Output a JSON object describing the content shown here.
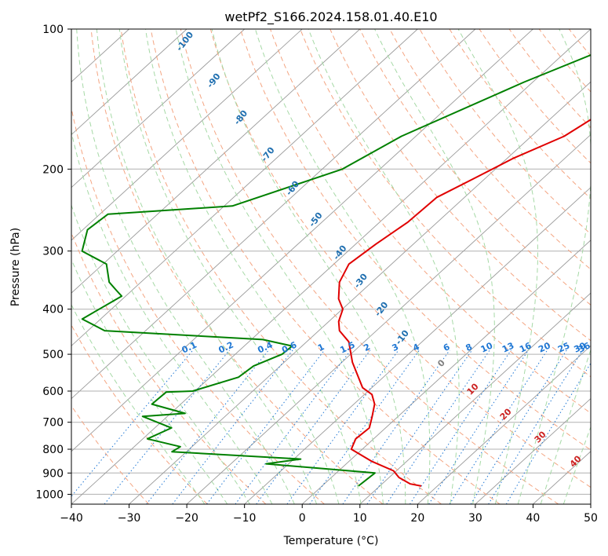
{
  "chart_data": {
    "type": "line",
    "title": "wetPf2_S166.2024.158.01.40.E10",
    "xlabel": "Temperature (°C)",
    "ylabel": "Pressure (hPa)",
    "xlim": [
      -40,
      50
    ],
    "ylim": [
      1050,
      100
    ],
    "y_scale": "log",
    "grid": true,
    "x_ticks": [
      -40,
      -30,
      -20,
      -10,
      0,
      10,
      20,
      30,
      40,
      50
    ],
    "y_ticks": [
      100,
      200,
      300,
      400,
      500,
      600,
      700,
      800,
      900,
      1000
    ],
    "series": [
      {
        "color": "#e00000",
        "points": [
          [
            -4.6,
            100
          ],
          [
            -12.4,
            110
          ],
          [
            -20.3,
            120
          ],
          [
            -19.7,
            130
          ],
          [
            -22.1,
            150
          ],
          [
            -24.3,
            170
          ],
          [
            -29,
            190
          ],
          [
            -32,
            210
          ],
          [
            -34.8,
            230
          ],
          [
            -35.1,
            260
          ],
          [
            -36.5,
            290
          ],
          [
            -37.4,
            320
          ],
          [
            -35.6,
            350
          ],
          [
            -32.6,
            380
          ],
          [
            -29.9,
            400
          ],
          [
            -28.3,
            425
          ],
          [
            -26.4,
            445
          ],
          [
            -22.7,
            470
          ],
          [
            -18.2,
            520
          ],
          [
            -11.6,
            590
          ],
          [
            -8.7,
            610
          ],
          [
            -6.4,
            640
          ],
          [
            -4.5,
            680
          ],
          [
            -2.8,
            720
          ],
          [
            -3.1,
            760
          ],
          [
            -1.9,
            800
          ],
          [
            4,
            850
          ],
          [
            9.5,
            890
          ],
          [
            11.7,
            920
          ],
          [
            14.9,
            950
          ],
          [
            17.2,
            960
          ]
        ]
      },
      {
        "color": "#008000",
        "points": [
          [
            -28.9,
            100
          ],
          [
            -41.5,
            130
          ],
          [
            -52.5,
            170
          ],
          [
            -56.5,
            200
          ],
          [
            -68.6,
            240
          ],
          [
            -88.6,
            250
          ],
          [
            -89.2,
            270
          ],
          [
            -86.1,
            300
          ],
          [
            -79.4,
            320
          ],
          [
            -75.5,
            350
          ],
          [
            -72.6,
            365
          ],
          [
            -70.7,
            375
          ],
          [
            -73.2,
            420
          ],
          [
            -67.1,
            445
          ],
          [
            -38,
            465
          ],
          [
            -31.7,
            480
          ],
          [
            -31.9,
            500
          ],
          [
            -34.6,
            530
          ],
          [
            -35.1,
            560
          ],
          [
            -40.4,
            600
          ],
          [
            -44.8,
            603
          ],
          [
            -45,
            640
          ],
          [
            -37.5,
            670
          ],
          [
            -44.3,
            680
          ],
          [
            -37.1,
            720
          ],
          [
            -39.2,
            760
          ],
          [
            -32,
            790
          ],
          [
            -32.5,
            810
          ],
          [
            -8.8,
            840
          ],
          [
            -13.9,
            860
          ],
          [
            6.7,
            900
          ],
          [
            6.3,
            960
          ]
        ]
      }
    ],
    "isotherm_labels": [],
    "dry_adiabat_labels": [
      "-100",
      "-90",
      "-80",
      "-70",
      "-60",
      "-50",
      "-40",
      "-30",
      "-20",
      "-10"
    ],
    "mixing_ratio_labels": [
      "0.1",
      "0.2",
      "0.4",
      "0.6",
      "1",
      "1.5",
      "2",
      "3",
      "4",
      "6",
      "8",
      "10",
      "13",
      "16",
      "20",
      "25",
      "30",
      "36"
    ],
    "moist_adiabat_labels": [
      "0",
      "10",
      "20",
      "30",
      "40"
    ],
    "colors": {
      "temperature": "#e00000",
      "dewpoint": "#008000",
      "dry_adiabat": "#f4a582",
      "moist_adiabat": "#a6d9a6",
      "mixing_ratio": "#1f77d4",
      "isotherm": "#9a9a9a",
      "dry_label": "#1f6fb0",
      "moist_label": "#cc2222"
    }
  }
}
